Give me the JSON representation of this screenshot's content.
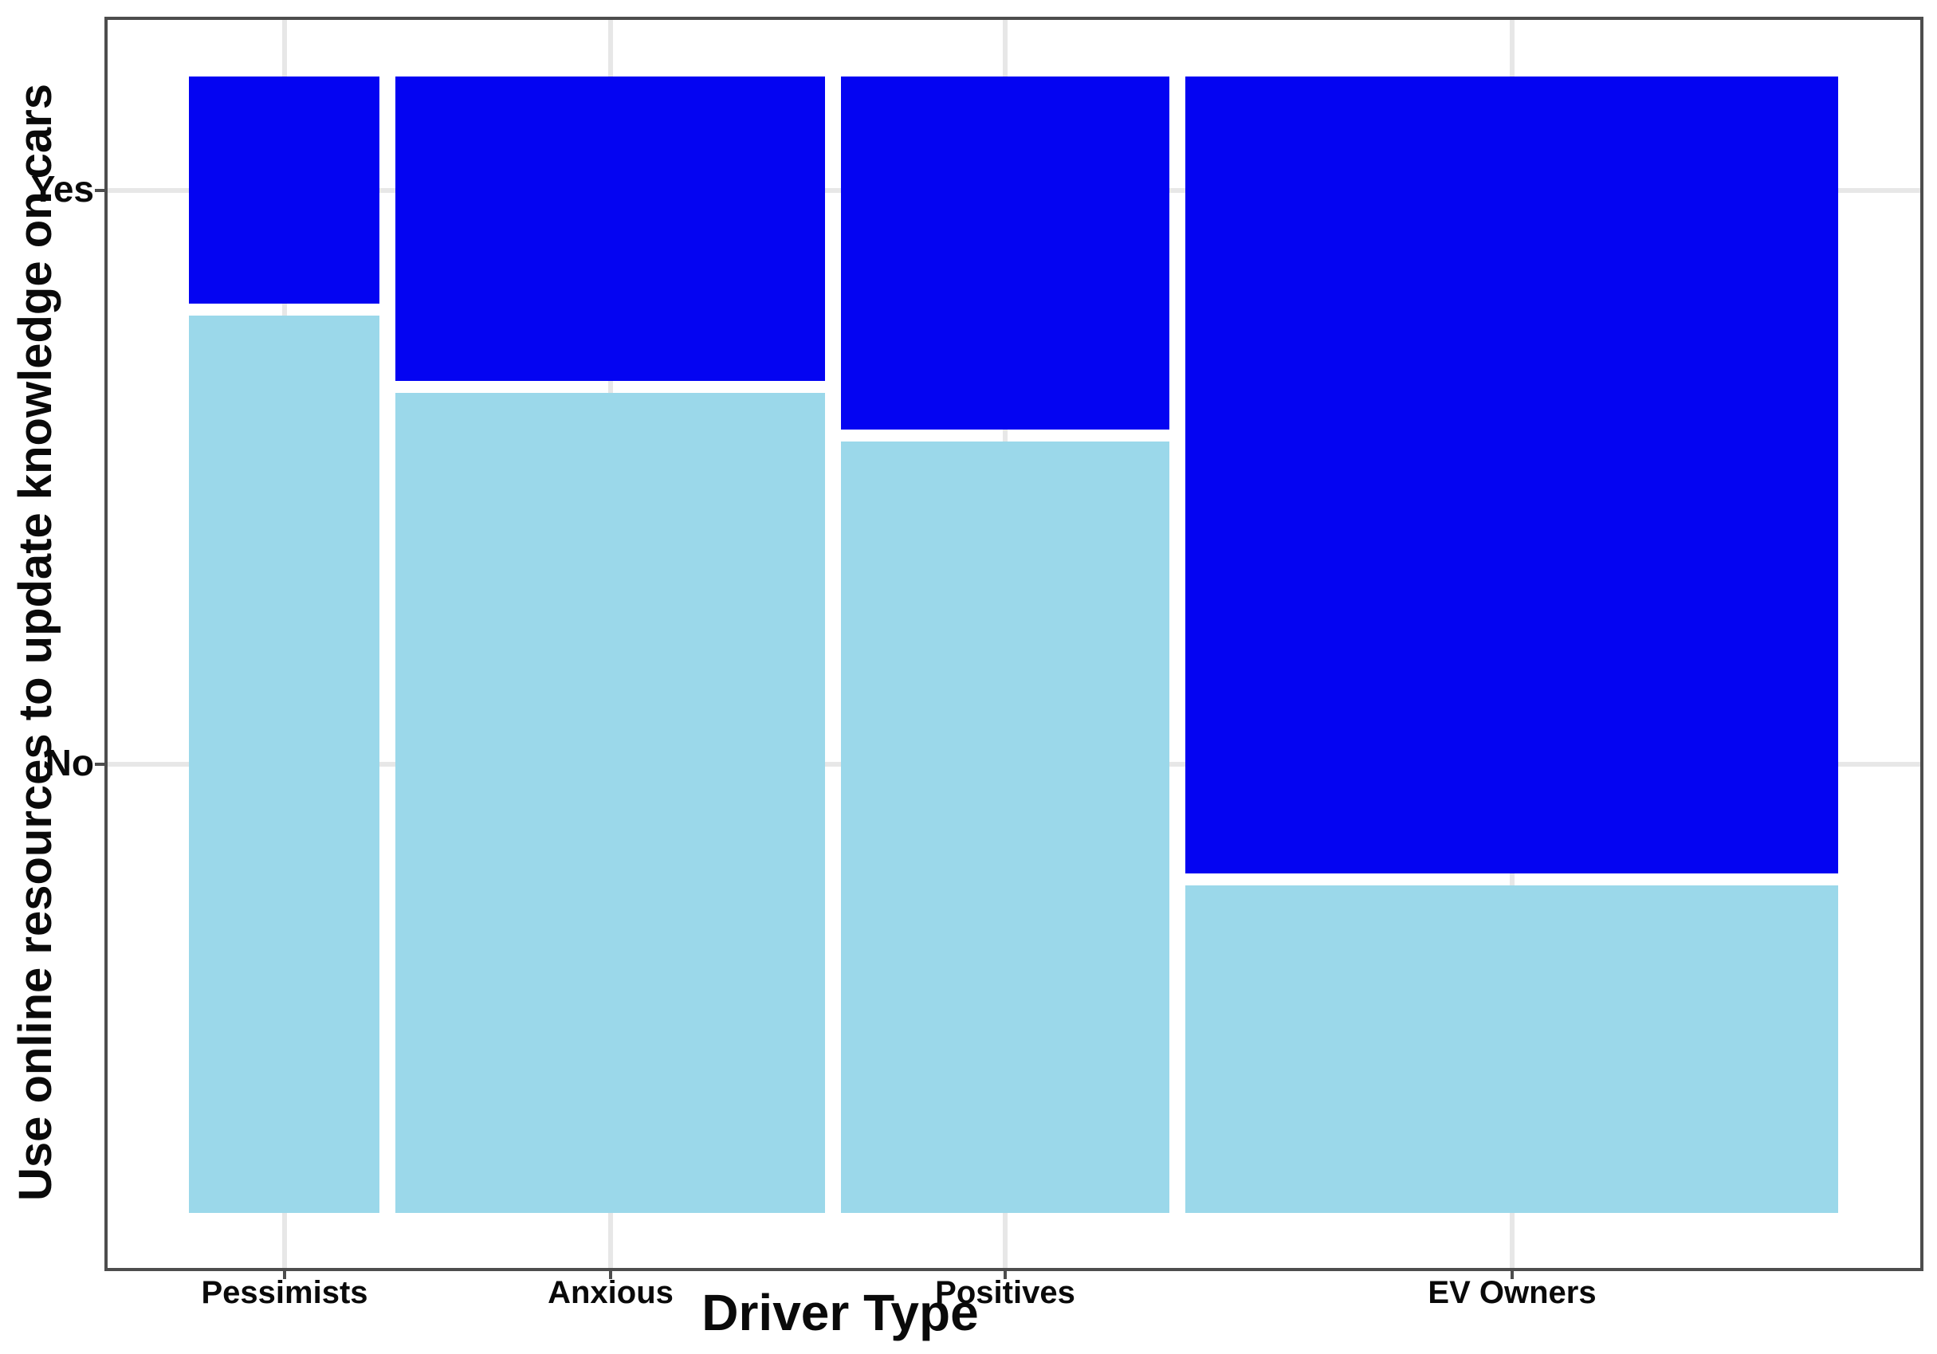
{
  "figure": {
    "background": "#ffffff",
    "panel_border_color": "#4d4d4d",
    "gridline_color": "#e7e7e7",
    "text_color": "#0a0a0a"
  },
  "chart_data": {
    "type": "mosaic",
    "title": "",
    "xlabel": "Driver Type",
    "ylabel": "Use online resources to update knowledge on cars",
    "categories": [
      "Pessimists",
      "Anxious",
      "Positives",
      "EV Owners"
    ],
    "column_width_shares": [
      0.119,
      0.268,
      0.205,
      0.407
    ],
    "y_tick_labels": [
      "Yes",
      "No"
    ],
    "series": [
      {
        "name": "Yes",
        "color": "#0404f2",
        "fractions": [
          0.202,
          0.271,
          0.314,
          0.709
        ]
      },
      {
        "name": "No",
        "color": "#9bd8ea",
        "fractions": [
          0.798,
          0.729,
          0.686,
          0.291
        ]
      }
    ],
    "legend": "none",
    "grid": true,
    "axis_ranges": {
      "x": "categorical (column width = group share of sample)",
      "y": "0-1 (proportion within group)"
    }
  }
}
